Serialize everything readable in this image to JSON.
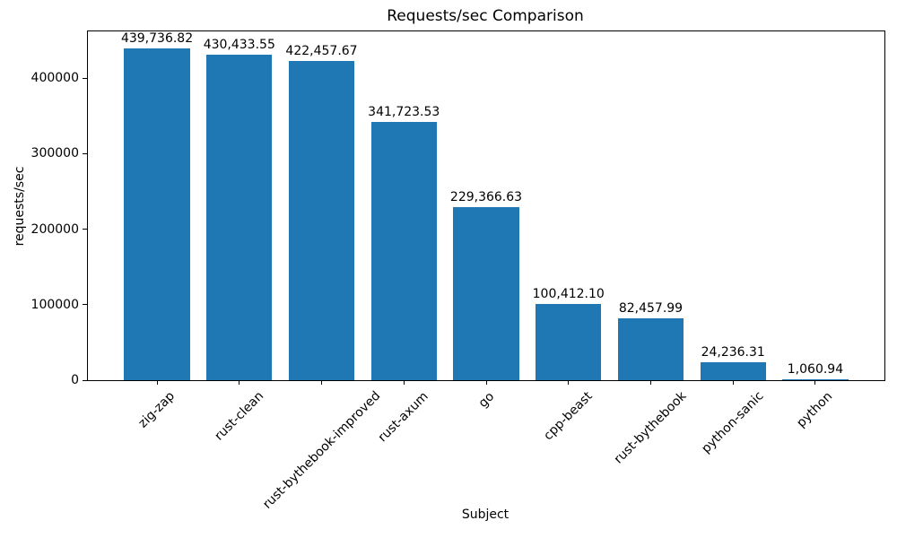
{
  "chart_data": {
    "type": "bar",
    "title": "Requests/sec Comparison",
    "xlabel": "Subject",
    "ylabel": "requests/sec",
    "categories": [
      "zig-zap",
      "rust-clean",
      "rust-bythebook-improved",
      "rust-axum",
      "go",
      "cpp-beast",
      "rust-bythebook",
      "python-sanic",
      "python"
    ],
    "values": [
      439736.82,
      430433.55,
      422457.67,
      341723.53,
      229366.63,
      100412.1,
      82457.99,
      24236.31,
      1060.94
    ],
    "value_labels": [
      "439,736.82",
      "430,433.55",
      "422,457.67",
      "341,723.53",
      "229,366.63",
      "100,412.10",
      "82,457.99",
      "24,236.31",
      "1,060.94"
    ],
    "yticks": [
      0,
      100000,
      200000,
      300000,
      400000
    ],
    "ylim": [
      0,
      461723.66
    ],
    "bar_color": "#1f77b4",
    "bar_width_fraction": 0.8,
    "grid": false,
    "legend": "none",
    "tick_label_rotation_deg": 45
  }
}
